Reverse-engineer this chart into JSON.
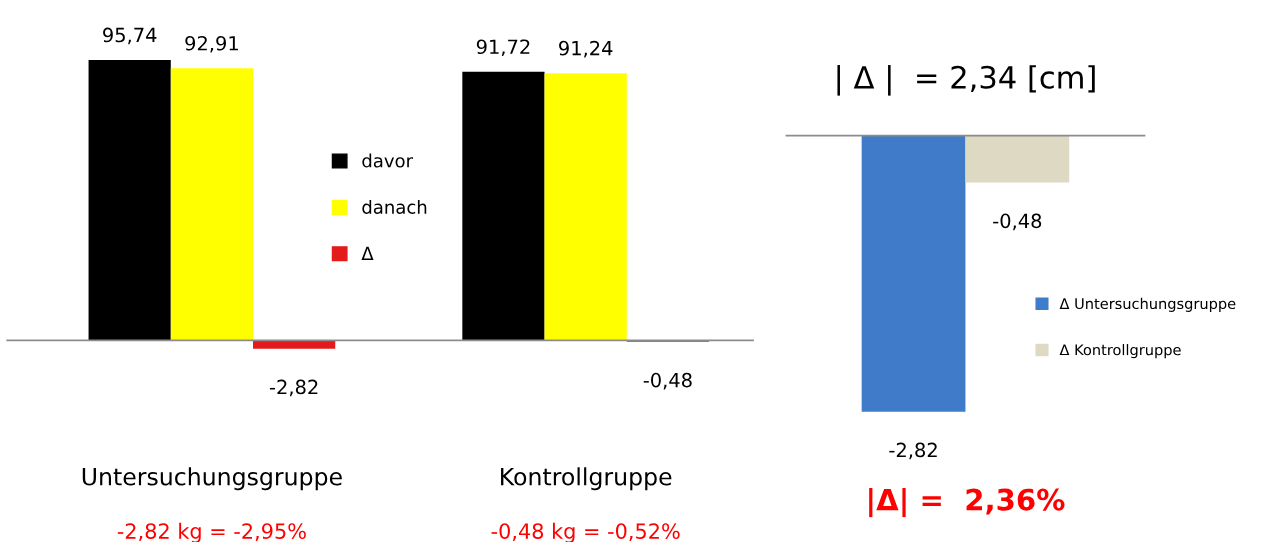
{
  "chart_data": [
    {
      "type": "bar",
      "categories": [
        "Untersuchungsgruppe",
        "Kontrollgruppe"
      ],
      "data_labels": true,
      "legend": "center",
      "series": [
        {
          "name": "davor",
          "color": "#000000",
          "values": [
            95.74,
            91.72
          ],
          "value_labels": [
            "95,74",
            "91,72"
          ]
        },
        {
          "name": "danach",
          "color": "#ffff00",
          "values": [
            92.91,
            91.24
          ],
          "value_labels": [
            "92,91",
            "91,24"
          ]
        },
        {
          "name": "Δ",
          "color": "#e31b1b",
          "values": [
            -2.82,
            -0.48
          ],
          "value_labels": [
            "-2,82",
            "-0,48"
          ]
        }
      ],
      "annotations": [
        "-2,82 kg = -2,95%",
        "-0,48 kg = -0,52%"
      ]
    },
    {
      "type": "bar",
      "title": "| Δ |  = 2,34 [cm]",
      "categories": [
        null
      ],
      "data_labels": true,
      "legend": "right",
      "series": [
        {
          "name": "Δ Untersuchungsgruppe",
          "color": "#3f7bc9",
          "values": [
            -2.82
          ],
          "value_labels": [
            "-2,82"
          ]
        },
        {
          "name": "Δ Kontrollgruppe",
          "color": "#ddd9c3",
          "values": [
            -0.48
          ],
          "value_labels": [
            "-0,48"
          ]
        }
      ],
      "annotations": [
        "|Δ| =  2,36%"
      ]
    }
  ]
}
